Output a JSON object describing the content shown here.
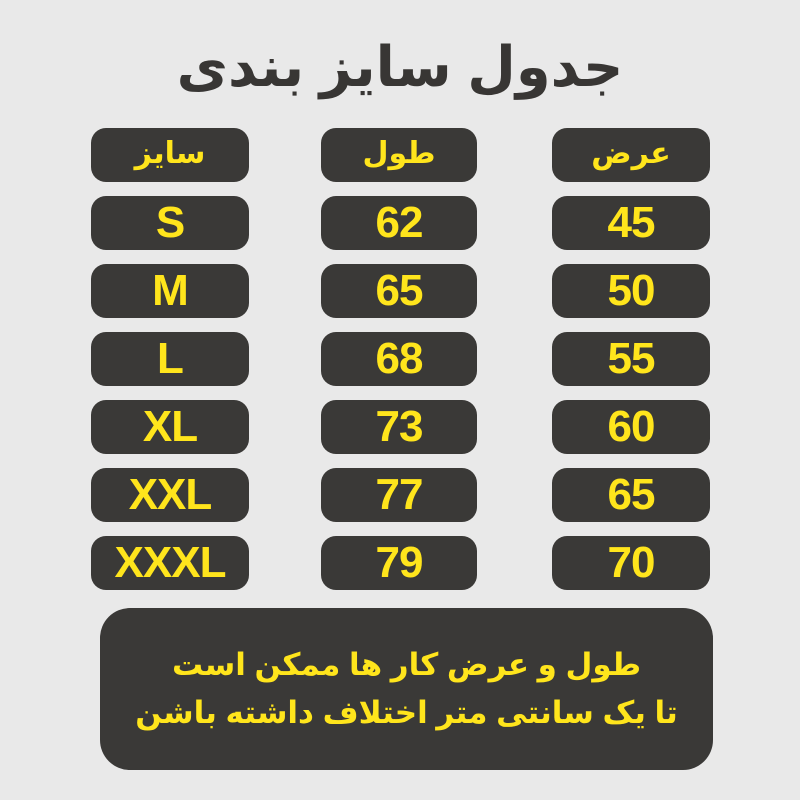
{
  "title": "جدول سایز بندی",
  "colors": {
    "background": "#e9e9e9",
    "pill_background": "#3a3937",
    "pill_text_yellow": "#ffe51c",
    "title_text": "#383634"
  },
  "table": {
    "headers": {
      "size": "سایز",
      "length": "طول",
      "width": "عرض"
    },
    "rows": [
      {
        "size": "S",
        "length": "62",
        "width": "45"
      },
      {
        "size": "M",
        "length": "65",
        "width": "50"
      },
      {
        "size": "L",
        "length": "68",
        "width": "55"
      },
      {
        "size": "XL",
        "length": "73",
        "width": "60"
      },
      {
        "size": "XXL",
        "length": "77",
        "width": "65"
      },
      {
        "size": "XXXL",
        "length": "79",
        "width": "70"
      }
    ]
  },
  "note": {
    "line1": "طول و عرض کار ها ممکن است",
    "line2": "تا یک سانتی متر اختلاف داشته باشن"
  },
  "chart_data": {
    "type": "table",
    "title": "جدول سایز بندی",
    "columns": [
      "سایز",
      "طول",
      "عرض"
    ],
    "rows": [
      [
        "S",
        62,
        45
      ],
      [
        "M",
        65,
        50
      ],
      [
        "L",
        68,
        55
      ],
      [
        "XL",
        73,
        60
      ],
      [
        "XXL",
        77,
        65
      ],
      [
        "XXXL",
        79,
        70
      ]
    ],
    "note": "طول و عرض کار ها ممکن است تا یک سانتی متر اختلاف داشته باشن"
  }
}
